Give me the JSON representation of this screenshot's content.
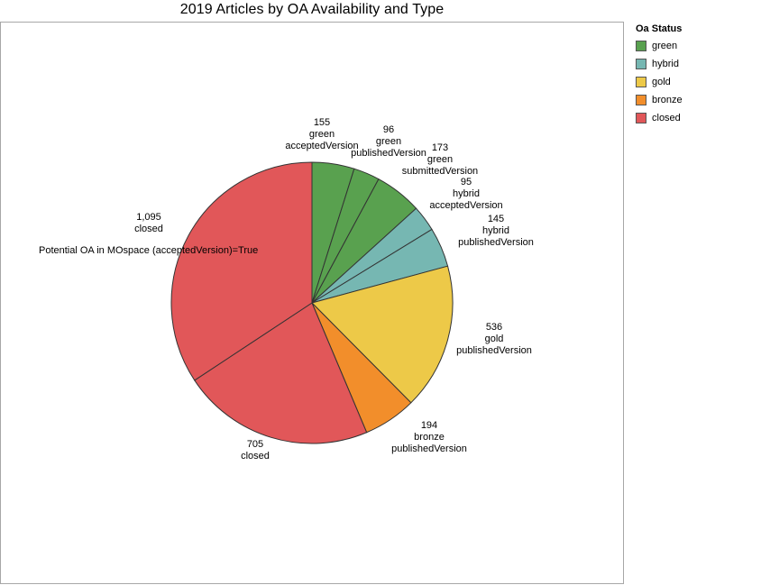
{
  "title": "2019 Articles by OA Availability and Type",
  "legend": {
    "title": "Oa Status",
    "items": [
      {
        "label": "green",
        "color": "#59a14f"
      },
      {
        "label": "hybrid",
        "color": "#76b7b2"
      },
      {
        "label": "gold",
        "color": "#edc948"
      },
      {
        "label": "bronze",
        "color": "#f28e2b"
      },
      {
        "label": "closed",
        "color": "#e15759"
      }
    ]
  },
  "annotation": "Potential OA in MOspace (acceptedVersion)=True",
  "chart_data": {
    "type": "pie",
    "title": "2019 Articles by OA Availability and Type",
    "start": "12 o'clock",
    "direction": "clockwise",
    "legend_position": "top-right",
    "slices": [
      {
        "value": 155,
        "value_label": "155",
        "status": "green",
        "version": "acceptedVersion",
        "color": "#59a14f"
      },
      {
        "value": 96,
        "value_label": "96",
        "status": "green",
        "version": "publishedVersion",
        "color": "#59a14f"
      },
      {
        "value": 173,
        "value_label": "173",
        "status": "green",
        "version": "submittedVersion",
        "color": "#59a14f"
      },
      {
        "value": 95,
        "value_label": "95",
        "status": "hybrid",
        "version": "acceptedVersion",
        "color": "#76b7b2"
      },
      {
        "value": 145,
        "value_label": "145",
        "status": "hybrid",
        "version": "publishedVersion",
        "color": "#76b7b2"
      },
      {
        "value": 536,
        "value_label": "536",
        "status": "gold",
        "version": "publishedVersion",
        "color": "#edc948"
      },
      {
        "value": 194,
        "value_label": "194",
        "status": "bronze",
        "version": "publishedVersion",
        "color": "#f28e2b"
      },
      {
        "value": 705,
        "value_label": "705",
        "status": "closed",
        "version": "",
        "color": "#e15759"
      },
      {
        "value": 1095,
        "value_label": "1,095",
        "status": "closed",
        "version": "",
        "color": "#e15759"
      }
    ]
  }
}
